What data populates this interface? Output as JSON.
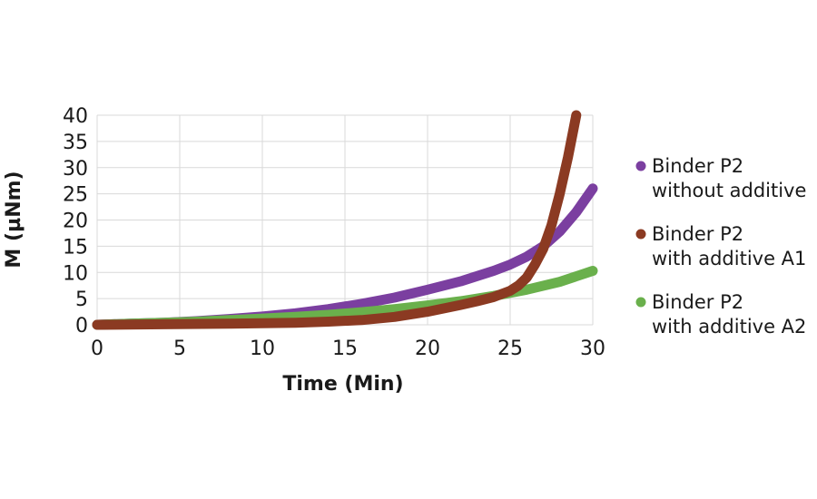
{
  "chart_data": {
    "type": "line",
    "xlabel": "Time (Min)",
    "ylabel": "M (µNm)",
    "xlim": [
      0,
      30
    ],
    "ylim": [
      0,
      40
    ],
    "xticks": [
      0,
      5,
      10,
      15,
      20,
      25,
      30
    ],
    "yticks": [
      0,
      5,
      10,
      15,
      20,
      25,
      30,
      35,
      40
    ],
    "grid": true,
    "legend_position": "right",
    "series": [
      {
        "name": [
          "Binder P2",
          "without additive"
        ],
        "color": "#7b3fa0",
        "x": [
          0,
          2,
          4,
          6,
          8,
          10,
          12,
          14,
          16,
          18,
          20,
          22,
          24,
          25,
          26,
          27,
          28,
          29,
          30
        ],
        "y": [
          0,
          0.2,
          0.4,
          0.7,
          1.1,
          1.6,
          2.2,
          3.0,
          4.0,
          5.2,
          6.7,
          8.3,
          10.3,
          11.5,
          13.0,
          15.0,
          17.8,
          21.5,
          26
        ]
      },
      {
        "name": [
          "Binder P2",
          "with additive A1"
        ],
        "color": "#8b3a22",
        "x": [
          0,
          4,
          8,
          10,
          12,
          14,
          16,
          18,
          20,
          22,
          23,
          24,
          25,
          25.5,
          26,
          26.5,
          27,
          27.5,
          28,
          28.5,
          29
        ],
        "y": [
          0,
          0.1,
          0.2,
          0.3,
          0.4,
          0.6,
          0.9,
          1.5,
          2.5,
          3.8,
          4.5,
          5.3,
          6.5,
          7.5,
          9.0,
          11.5,
          14.5,
          19,
          25,
          32,
          40
        ]
      },
      {
        "name": [
          "Binder P2",
          "with additive A2"
        ],
        "color": "#6ab04c",
        "x": [
          0,
          2,
          4,
          6,
          8,
          10,
          12,
          14,
          16,
          18,
          20,
          22,
          24,
          26,
          28,
          30
        ],
        "y": [
          0,
          0.2,
          0.4,
          0.6,
          0.9,
          1.2,
          1.5,
          1.9,
          2.4,
          3.0,
          3.7,
          4.5,
          5.5,
          6.7,
          8.2,
          10.3
        ]
      }
    ]
  }
}
